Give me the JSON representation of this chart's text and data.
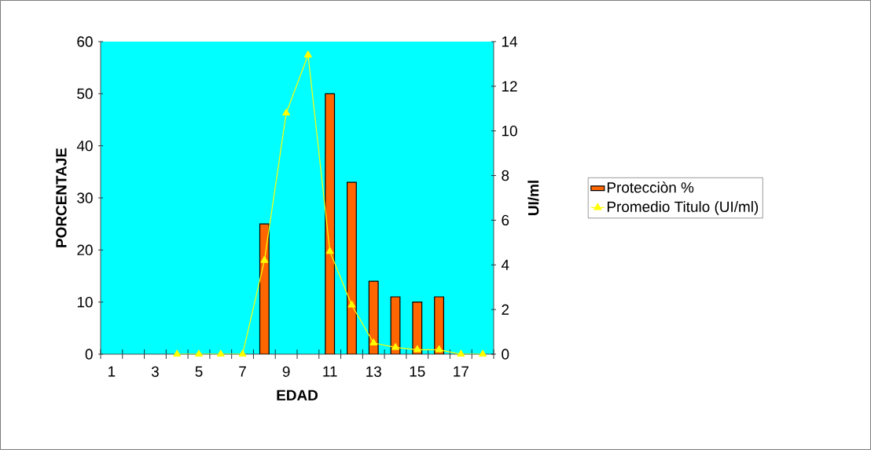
{
  "chart_data": {
    "type": "bar",
    "xlabel": "EDAD",
    "ylabel": "PORCENTAJE",
    "y2label": "UI/ml",
    "categories": [
      "1",
      null,
      "3",
      null,
      "5",
      null,
      "7",
      null,
      "9",
      null,
      "11",
      null,
      "13",
      null,
      "15",
      null,
      "17",
      null
    ],
    "series": [
      {
        "name": "Protecciòn %",
        "color": "#ff6600",
        "values": [
          null,
          null,
          null,
          null,
          null,
          null,
          null,
          25,
          null,
          null,
          50,
          33,
          14,
          11,
          10,
          11,
          null,
          null
        ]
      },
      {
        "name": "Promedio Titulo (UI/ml)",
        "type": "line",
        "axis": "y2",
        "color": "#ffff00",
        "marker": "triangle",
        "values": [
          null,
          null,
          null,
          0,
          0,
          0,
          0,
          4.2,
          10.8,
          13.4,
          4.6,
          2.2,
          0.5,
          0.3,
          0.2,
          0.2,
          0,
          0
        ]
      }
    ],
    "ylim": [
      0,
      60
    ],
    "yticks": [
      0,
      10,
      20,
      30,
      40,
      50,
      60
    ],
    "y2lim": [
      0,
      14
    ],
    "y2ticks": [
      0,
      2,
      4,
      6,
      8,
      10,
      12,
      14
    ],
    "grid": false,
    "legend": "right"
  }
}
